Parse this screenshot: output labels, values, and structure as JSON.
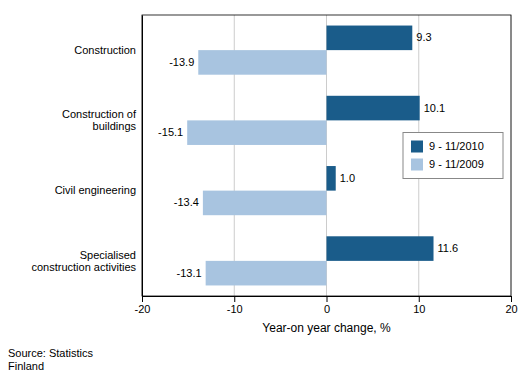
{
  "chart_data": {
    "type": "bar",
    "orientation": "horizontal",
    "categories": [
      "Specialised\nconstruction activities",
      "Civil engineering",
      "Construction of\nbuildings",
      "Construction"
    ],
    "series": [
      {
        "name": "9 - 11/2010",
        "color": "#1A5C8A",
        "values": [
          11.6,
          1.0,
          10.1,
          9.3
        ],
        "value_labels": [
          "11.6",
          "1.0",
          "10.1",
          "9.3"
        ]
      },
      {
        "name": "9 - 11/2009",
        "color": "#A8C4E0",
        "values": [
          -13.1,
          -13.4,
          -15.1,
          -13.9
        ]
      }
    ],
    "xlabel": "Year-on year change, %",
    "xlim": [
      -20,
      20
    ],
    "xticks": [
      -20,
      -10,
      0,
      10,
      20
    ],
    "grid": true,
    "legend": "right",
    "data_labels": true,
    "annotations": [
      "Source: Statistics\nFinland"
    ]
  }
}
